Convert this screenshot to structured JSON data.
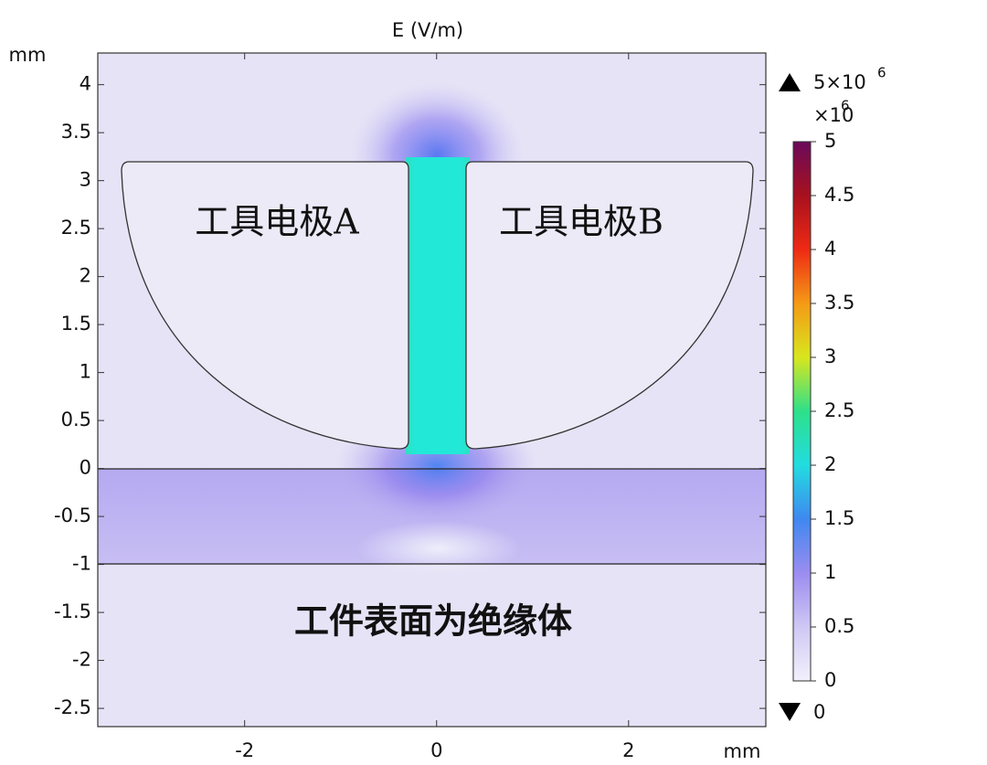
{
  "chart_data": {
    "type": "field",
    "title": "E (V/m)",
    "x_unit": "mm",
    "y_unit": "mm",
    "xlim": [
      -3.53,
      3.43
    ],
    "xticks": [
      -2,
      0,
      2
    ],
    "ylim": [
      -2.69,
      4.33
    ],
    "yticks": [
      4,
      3.5,
      3,
      2.5,
      2,
      1.5,
      1,
      0.5,
      0,
      -0.5,
      -1,
      -1.5,
      -2,
      -2.5
    ],
    "annotations": [
      "工具电极A",
      "工具电极B",
      "工件表面为绝缘体"
    ],
    "colorbar": {
      "lim": [
        0,
        5
      ],
      "ticks": [
        0,
        0.5,
        1,
        1.5,
        2,
        2.5,
        3,
        3.5,
        4,
        4.5,
        5
      ],
      "multiplier": "×10",
      "multiplier_exp": "6",
      "max_label": "5×10",
      "max_label_exp": "6",
      "min_label": "0"
    }
  }
}
